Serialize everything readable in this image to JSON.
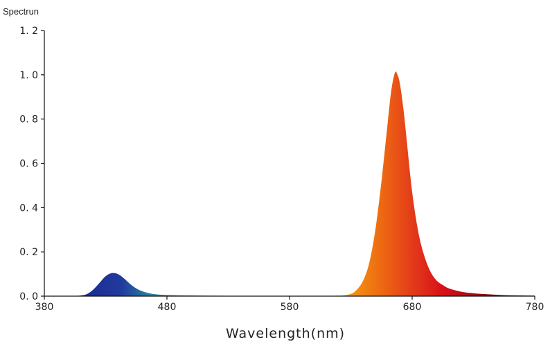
{
  "chart_data": {
    "type": "area",
    "title": "",
    "ylabel": "Spectrun",
    "xlabel": "Wavelength(nm)",
    "xlim": [
      380,
      780
    ],
    "ylim": [
      0,
      1.2
    ],
    "x_ticks": [
      380,
      480,
      580,
      680,
      780
    ],
    "x_tick_labels": [
      "380",
      "480",
      "580",
      "680",
      "780"
    ],
    "y_ticks": [
      0,
      0.2,
      0.4,
      0.6,
      0.8,
      1.0,
      1.2
    ],
    "y_tick_labels": [
      "0. 0",
      "0. 2",
      "0. 4",
      "0. 6",
      "0. 8",
      "1. 0",
      "1. 2"
    ],
    "grid": false,
    "series": [
      {
        "color": "#1f2f9a",
        "x": [
          380,
          400,
          410,
          415,
          420,
          425,
          430,
          435,
          440,
          445,
          450,
          455,
          460,
          465,
          470,
          480,
          500,
          520,
          540,
          560,
          580,
          600,
          620,
          630
        ],
        "y": [
          0,
          0,
          0.003,
          0.01,
          0.03,
          0.06,
          0.09,
          0.104,
          0.1,
          0.08,
          0.055,
          0.035,
          0.022,
          0.014,
          0.009,
          0.005,
          0.003,
          0.002,
          0.0015,
          0.001,
          0.001,
          0.001,
          0.002,
          0.004
        ]
      },
      {
        "color": "#d81418",
        "x": [
          620,
          630,
          635,
          640,
          645,
          650,
          655,
          660,
          663,
          666,
          668,
          670,
          673,
          676,
          680,
          685,
          690,
          695,
          700,
          705,
          710,
          720,
          730,
          740,
          750,
          760,
          770,
          780
        ],
        "y": [
          0,
          0.01,
          0.03,
          0.07,
          0.15,
          0.3,
          0.52,
          0.78,
          0.93,
          1.01,
          1.0,
          0.96,
          0.84,
          0.68,
          0.47,
          0.29,
          0.18,
          0.11,
          0.07,
          0.05,
          0.035,
          0.02,
          0.013,
          0.009,
          0.006,
          0.004,
          0.003,
          0.002
        ]
      }
    ]
  }
}
